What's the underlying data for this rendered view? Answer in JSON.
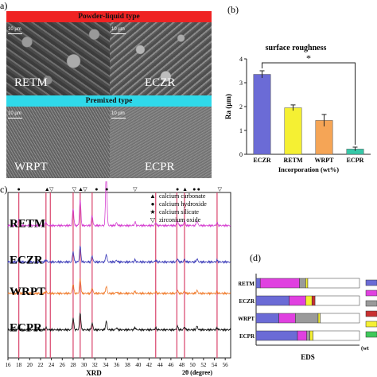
{
  "panel_a": {
    "letter": "a)",
    "banner_top": "Powder-liquid type",
    "banner_mid": "Premixed type",
    "scale_bar": "10 µm",
    "labels": [
      "RETM",
      "ECZR",
      "WRPT",
      "ECPR"
    ],
    "colors": {
      "banner_top": "#ef2323",
      "banner_mid": "#2fd9ea"
    }
  },
  "panel_b": {
    "letter": "(b)",
    "chart_data": {
      "type": "bar",
      "title": "surface roughness",
      "ylabel": "Ra (µm)",
      "xlabel": "Incorporation (wt%)",
      "categories": [
        "ECZR",
        "RETM",
        "WRPT",
        "ECPR"
      ],
      "values": [
        3.35,
        1.95,
        1.42,
        0.22
      ],
      "errors": [
        0.15,
        0.12,
        0.25,
        0.08
      ],
      "colors": [
        "#6b6bd6",
        "#f5f033",
        "#f5a556",
        "#36c8a8"
      ],
      "yticks": [
        0,
        1,
        2,
        3,
        4
      ],
      "ylim": [
        0,
        4
      ],
      "significance": "*"
    }
  },
  "panel_c": {
    "letter": "c)",
    "chart_data": {
      "type": "line",
      "xlabel": "XRD",
      "xlabel2": "2θ (degree)",
      "xticks": [
        16,
        18,
        20,
        22,
        24,
        26,
        28,
        30,
        32,
        34,
        36,
        38,
        40,
        42,
        44,
        46,
        48,
        50,
        52,
        54,
        56
      ],
      "xlim": [
        16,
        57
      ],
      "series": [
        {
          "name": "RETM",
          "color": "#d53fd0",
          "baseline": 0.8,
          "scale": 0.9
        },
        {
          "name": "ECZR",
          "color": "#3a3ab8",
          "baseline": 0.58,
          "scale": 0.55
        },
        {
          "name": "WRPT",
          "color": "#f07a2a",
          "baseline": 0.39,
          "scale": 0.5
        },
        {
          "name": "ECPR",
          "color": "#111111",
          "baseline": 0.17,
          "scale": 0.6
        }
      ],
      "reference_lines": [
        18.0,
        23.0,
        23.8,
        28.0,
        29.3,
        31.5,
        43.2,
        47.1,
        48.5,
        54.5
      ],
      "legend": [
        {
          "symbol": "▲",
          "label": "calcium carbonate"
        },
        {
          "symbol": "●",
          "label": "calcium hydroxide"
        },
        {
          "symbol": "★",
          "label": "calcium silicate"
        },
        {
          "symbol": "▽",
          "label": "zirconium oxide"
        }
      ],
      "markers": [
        {
          "x": 18.0,
          "symbol": "●"
        },
        {
          "x": 23.2,
          "symbol": "▲"
        },
        {
          "x": 24.0,
          "symbol": "▽"
        },
        {
          "x": 28.2,
          "symbol": "▽"
        },
        {
          "x": 29.4,
          "symbol": "▲"
        },
        {
          "x": 30.2,
          "symbol": "▽"
        },
        {
          "x": 32.3,
          "symbol": "●"
        },
        {
          "x": 34.2,
          "symbol": "●"
        },
        {
          "x": 39.4,
          "symbol": "▽"
        },
        {
          "x": 47.2,
          "symbol": "●"
        },
        {
          "x": 48.6,
          "symbol": "▲"
        },
        {
          "x": 50.3,
          "symbol": "●"
        },
        {
          "x": 51.1,
          "symbol": "●"
        },
        {
          "x": 55.0,
          "symbol": "▽"
        }
      ]
    }
  },
  "panel_d": {
    "letter": "(d)",
    "chart_data": {
      "type": "bar",
      "xlabel": "EDS",
      "xlabel2": "(wt",
      "categories": [
        "RETM",
        "ECZR",
        "WRPT",
        "ECPR"
      ],
      "segments": [
        [
          {
            "v": 4,
            "c": "#6b6bd6"
          },
          {
            "v": 38,
            "c": "#e040e0"
          },
          {
            "v": 6,
            "c": "#9a9a9a"
          },
          {
            "v": 2,
            "c": "#f5f033"
          },
          {
            "v": 50,
            "c": "#ffffff"
          }
        ],
        [
          {
            "v": 32,
            "c": "#6b6bd6"
          },
          {
            "v": 16,
            "c": "#e040e0"
          },
          {
            "v": 6,
            "c": "#f5f033"
          },
          {
            "v": 3,
            "c": "#c83030"
          },
          {
            "v": 43,
            "c": "#ffffff"
          }
        ],
        [
          {
            "v": 22,
            "c": "#6b6bd6"
          },
          {
            "v": 16,
            "c": "#e040e0"
          },
          {
            "v": 22,
            "c": "#9a9a9a"
          },
          {
            "v": 2,
            "c": "#f5f033"
          },
          {
            "v": 38,
            "c": "#ffffff"
          }
        ],
        [
          {
            "v": 40,
            "c": "#6b6bd6"
          },
          {
            "v": 9,
            "c": "#e040e0"
          },
          {
            "v": 3,
            "c": "#9a9a9a"
          },
          {
            "v": 3,
            "c": "#f5f033"
          },
          {
            "v": 45,
            "c": "#ffffff"
          }
        ]
      ],
      "legend_colors": [
        "#6b6bd6",
        "#e040e0",
        "#9a9a9a",
        "#c83030",
        "#f5f033",
        "#3ec85a"
      ]
    }
  }
}
